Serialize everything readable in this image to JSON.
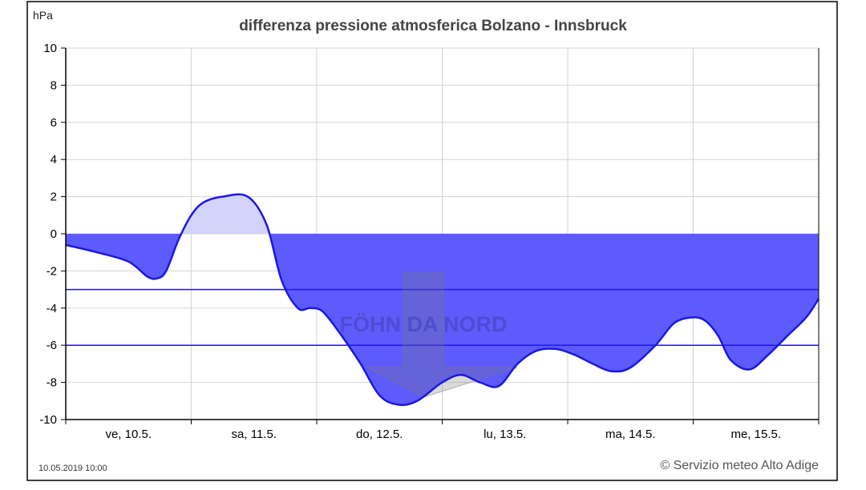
{
  "chart_data": {
    "type": "area",
    "title": "differenza pressione atmosferica Bolzano - Innsbruck",
    "ylabel": "hPa",
    "xlabel": "",
    "ylim": [
      -10,
      10
    ],
    "yticks": [
      10,
      8,
      6,
      4,
      2,
      0,
      -2,
      -4,
      -6,
      -8,
      -10
    ],
    "xlim": [
      0,
      6
    ],
    "day_labels": [
      "ve, 10.5.",
      "sa, 11.5.",
      "do, 12.5.",
      "lu, 13.5.",
      "ma, 14.5.",
      "me, 15.5."
    ],
    "grid": true,
    "reference_lines": [
      -3,
      -6
    ],
    "annotation": "FÖHN DA NORD",
    "series": [
      {
        "x": [
          0.0,
          0.25,
          0.5,
          0.65,
          0.73,
          0.8,
          0.9,
          1.0,
          1.1,
          1.25,
          1.45,
          1.6,
          1.72,
          1.85,
          1.95,
          2.05,
          2.2,
          2.35,
          2.5,
          2.65,
          2.8,
          3.0,
          3.15,
          3.3,
          3.45,
          3.6,
          3.75,
          3.9,
          4.05,
          4.2,
          4.35,
          4.5,
          4.7,
          4.85,
          5.0,
          5.1,
          5.2,
          5.3,
          5.45,
          5.6,
          5.75,
          5.9,
          6.0
        ],
        "values": [
          -0.6,
          -1.0,
          -1.5,
          -2.3,
          -2.4,
          -2.0,
          -0.3,
          1.0,
          1.7,
          2.0,
          2.0,
          0.5,
          -2.5,
          -4.0,
          -4.0,
          -4.2,
          -5.5,
          -7.0,
          -8.7,
          -9.2,
          -9.0,
          -8.0,
          -7.6,
          -8.0,
          -8.2,
          -7.0,
          -6.3,
          -6.2,
          -6.5,
          -7.0,
          -7.4,
          -7.2,
          -6.0,
          -4.8,
          -4.5,
          -4.7,
          -5.5,
          -6.8,
          -7.3,
          -6.5,
          -5.5,
          -4.5,
          -3.5
        ]
      }
    ],
    "colors": {
      "negative_fill": "#5d5bfb",
      "positive_fill": "#d3d2fb",
      "line": "#1a17e6",
      "arrow": "#7a7a7a",
      "arrow_text": "#4a49c8"
    }
  },
  "footer": {
    "date": "10.05.2019 10:00",
    "credit": "© Servizio meteo Alto Adige"
  }
}
